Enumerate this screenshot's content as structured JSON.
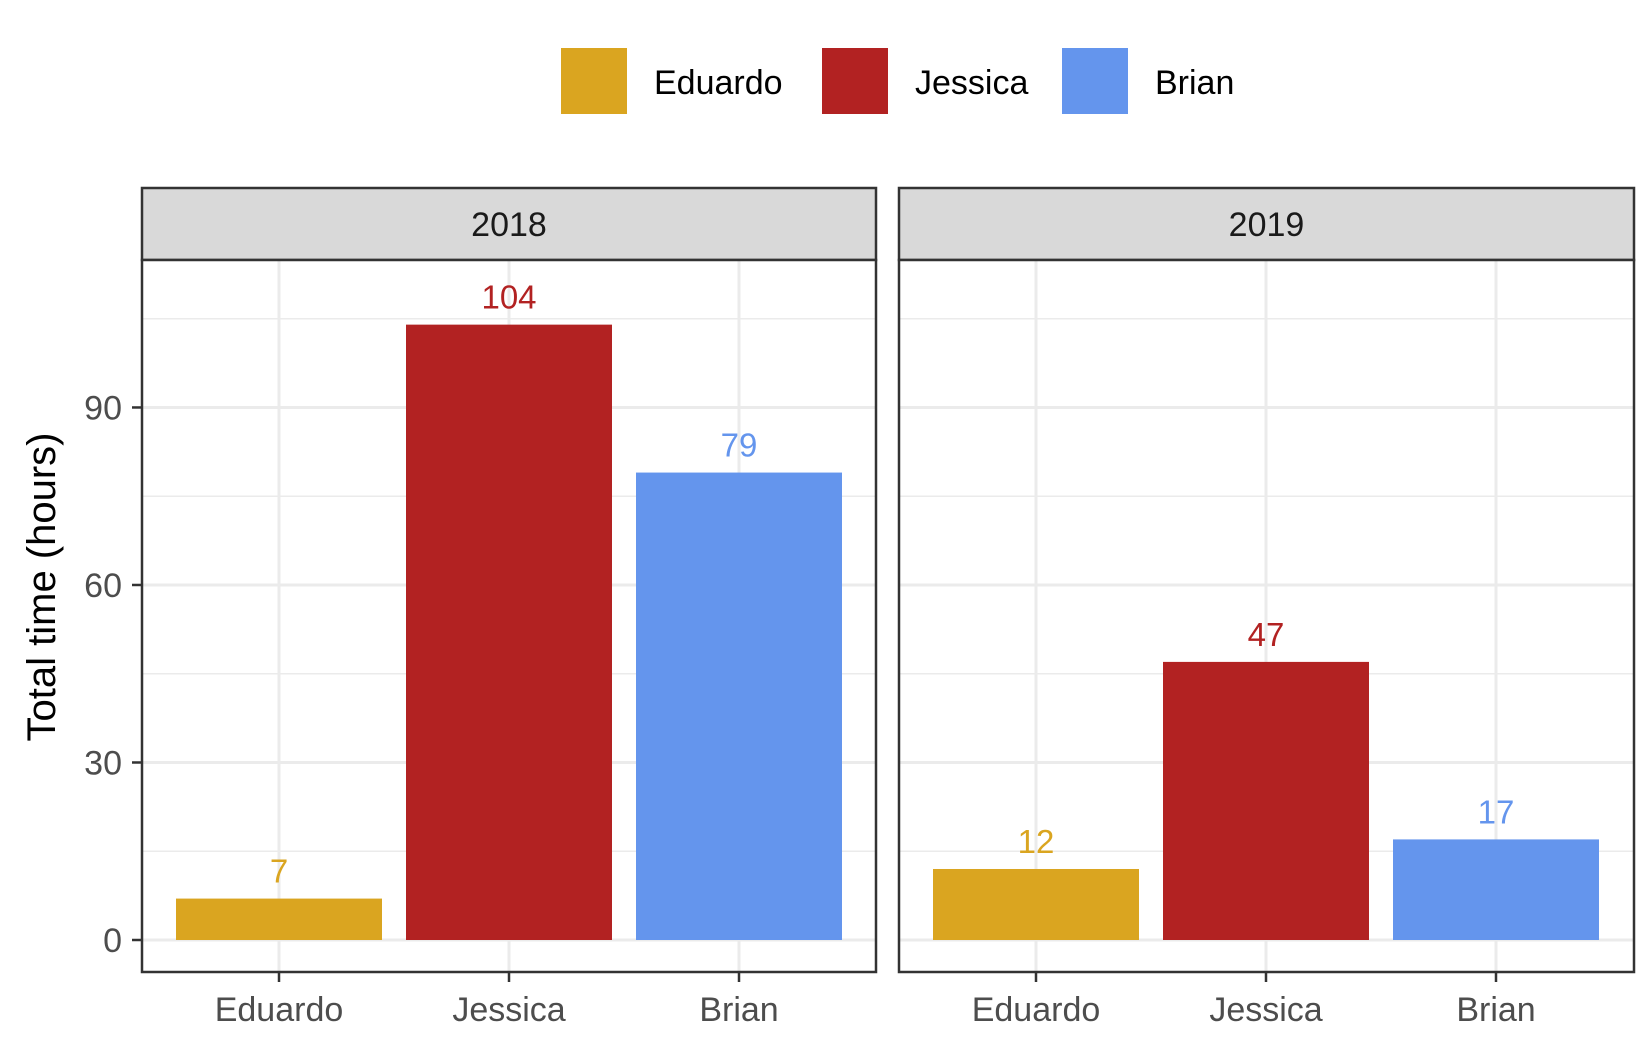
{
  "chart_data": {
    "type": "bar",
    "ylabel": "Total time (hours)",
    "xlabel": "",
    "ylim": [
      0,
      117
    ],
    "yticks": [
      0,
      30,
      60,
      90
    ],
    "grid": true,
    "legend_position": "top",
    "categories": [
      "Eduardo",
      "Jessica",
      "Brian"
    ],
    "colors": {
      "Eduardo": "#DAA520",
      "Jessica": "#B22222",
      "Brian": "#6495ED"
    },
    "legend": [
      {
        "label": "Eduardo",
        "color": "#DAA520"
      },
      {
        "label": "Jessica",
        "color": "#B22222"
      },
      {
        "label": "Brian",
        "color": "#6495ED"
      }
    ],
    "facets": [
      {
        "label": "2018",
        "values": [
          7,
          104,
          79
        ],
        "value_labels": [
          "7",
          "104",
          "79"
        ]
      },
      {
        "label": "2019",
        "values": [
          12,
          47,
          17
        ],
        "value_labels": [
          "12",
          "47",
          "17"
        ]
      }
    ]
  }
}
